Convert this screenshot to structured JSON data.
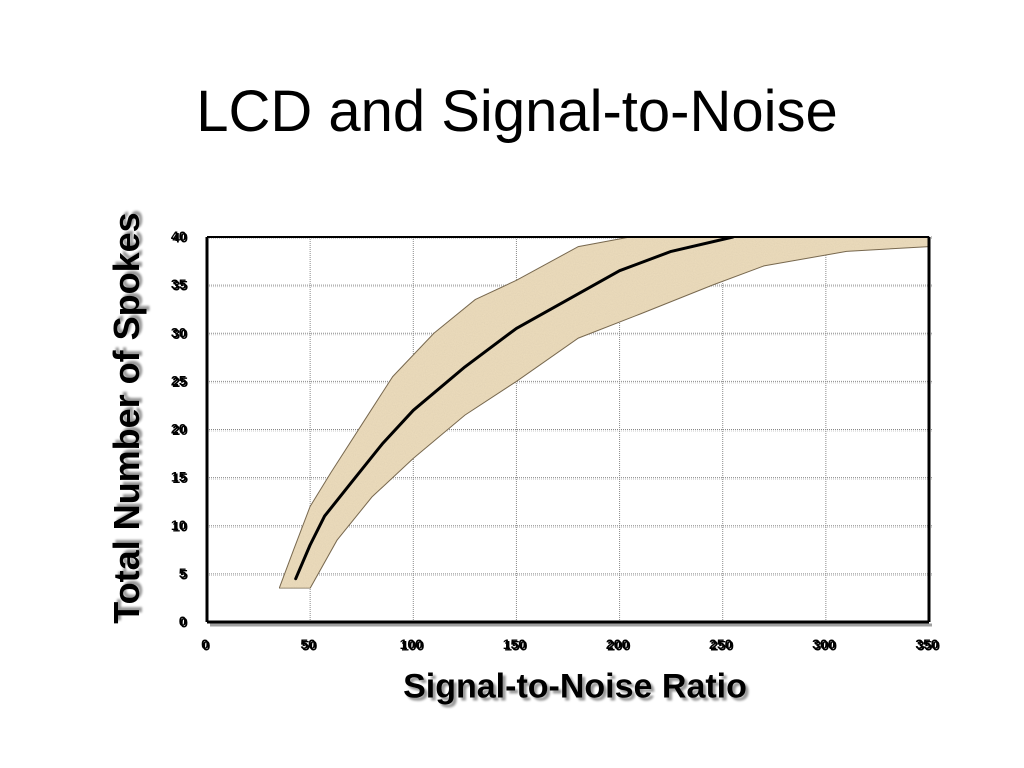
{
  "slide": {
    "title": "LCD and Signal-to-Noise"
  },
  "chart_data": {
    "type": "area",
    "title": "LCD and Signal-to-Noise",
    "xlabel": "Signal-to-Noise Ratio",
    "ylabel": "Total Number of Spokes",
    "xlim": [
      0,
      350
    ],
    "ylim": [
      0,
      40
    ],
    "xticks": [
      0,
      50,
      100,
      150,
      200,
      250,
      300,
      350
    ],
    "yticks": [
      0,
      5,
      10,
      15,
      20,
      25,
      30,
      35,
      40
    ],
    "grid": true,
    "band_upper": {
      "x": [
        35,
        42,
        50,
        60,
        75,
        90,
        110,
        130,
        150,
        180,
        205
      ],
      "y": [
        3.5,
        7.5,
        12,
        15.5,
        20.5,
        25.5,
        30,
        33.5,
        35.5,
        39,
        40
      ]
    },
    "band_lower": {
      "x": [
        35,
        50,
        63,
        80,
        100,
        125,
        150,
        180,
        210,
        245,
        270,
        310,
        350
      ],
      "y": [
        3.5,
        3.5,
        8.5,
        13,
        17,
        21.5,
        25,
        29.5,
        32,
        35,
        37,
        38.5,
        39
      ]
    },
    "center_line": {
      "x": [
        43,
        50,
        57,
        70,
        85,
        100,
        125,
        150,
        175,
        200,
        225,
        255
      ],
      "y": [
        4.5,
        8,
        11,
        14.5,
        18.5,
        22,
        26.5,
        30.5,
        33.5,
        36.5,
        38.5,
        40
      ]
    },
    "colors": {
      "band_fill": "#ecdcbc",
      "band_edge": "#7a6a50",
      "line": "#000000",
      "grid": "#8a8a8a"
    }
  }
}
